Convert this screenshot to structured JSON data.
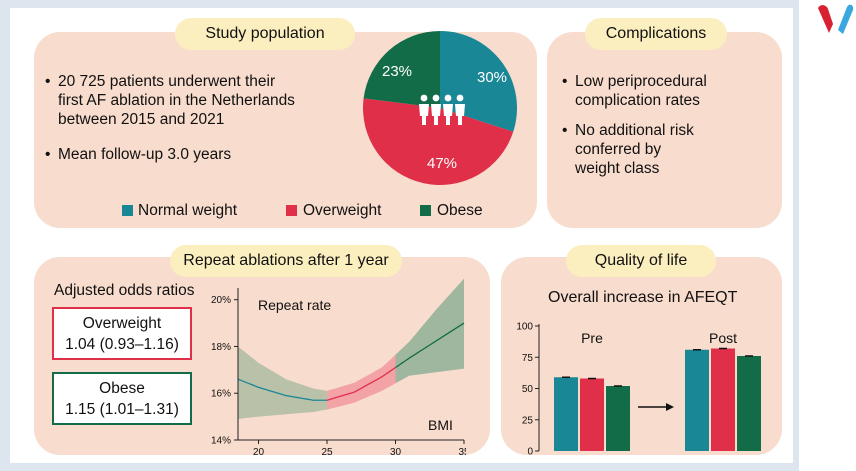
{
  "colors": {
    "normal": "#1a8797",
    "overweight": "#df2f49",
    "obese": "#136c48",
    "panel": "#f8dccd",
    "pill": "#fcefbf"
  },
  "study": {
    "title": "Study population",
    "bullet1": [
      "20 725 patients underwent their",
      "first AF ablation in the Netherlands",
      "between 2015 and 2021"
    ],
    "bullet2": "Mean follow-up 3.0 years",
    "pie": [
      {
        "label": "30%",
        "value": 30,
        "key": "normal"
      },
      {
        "label": "47%",
        "value": 47,
        "key": "overweight"
      },
      {
        "label": "23%",
        "value": 23,
        "key": "obese"
      }
    ],
    "people_icon": "people-group-icon",
    "legend": [
      "Normal weight",
      "Overweight",
      "Obese"
    ]
  },
  "complications": {
    "title": "Complications",
    "bullet1": [
      "Low periprocedural",
      "complication rates"
    ],
    "bullet2": [
      "No additional risk",
      "conferred by",
      "weight class"
    ]
  },
  "repeat": {
    "title": "Repeat ablations after 1 year",
    "odds_title": "Adjusted odds ratios",
    "overweight_label": "Overweight",
    "overweight_value": "1.04 (0.93–1.16)",
    "obese_label": "Obese",
    "obese_value": "1.15 (1.01–1.31)"
  },
  "qol": {
    "title": "Quality of life",
    "subtitle": "Overall increase in AFEQT"
  },
  "chart_data": [
    {
      "type": "line",
      "title": "Repeat rate",
      "xlabel": "BMI",
      "ylabel": "",
      "x_ticks": [
        "20",
        "25",
        "30",
        "35"
      ],
      "y_ticks": [
        "14%",
        "16%",
        "18%",
        "20%"
      ],
      "xlim": [
        18.5,
        35
      ],
      "ylim": [
        14,
        20.5
      ],
      "series": [
        {
          "name": "Repeat rate",
          "x": [
            18.5,
            20,
            22,
            24,
            25,
            27,
            29,
            31,
            33,
            35
          ],
          "y": [
            16.6,
            16.25,
            15.9,
            15.7,
            15.7,
            16.05,
            16.7,
            17.5,
            18.25,
            19.0
          ]
        }
      ],
      "ci_upper": [
        18.0,
        17.3,
        16.6,
        16.2,
        16.1,
        16.45,
        17.1,
        18.2,
        19.6,
        20.9
      ],
      "ci_lower": [
        14.9,
        15.0,
        15.1,
        15.2,
        15.3,
        15.6,
        16.1,
        16.75,
        16.9,
        17.05
      ],
      "segments": [
        {
          "name": "Normal weight",
          "from": 18.5,
          "to": 25,
          "key": "normal"
        },
        {
          "name": "Overweight",
          "from": 25,
          "to": 30,
          "key": "overweight"
        },
        {
          "name": "Obese",
          "from": 30,
          "to": 35,
          "key": "obese"
        }
      ]
    },
    {
      "type": "bar",
      "title": "Overall increase in AFEQT",
      "categories": [
        "Pre",
        "Post"
      ],
      "series": [
        {
          "name": "Normal weight",
          "values": [
            59,
            81
          ],
          "key": "normal"
        },
        {
          "name": "Overweight",
          "values": [
            58,
            82
          ],
          "key": "overweight"
        },
        {
          "name": "Obese",
          "values": [
            52,
            76
          ],
          "key": "obese"
        }
      ],
      "y_ticks": [
        "0",
        "25",
        "50",
        "75",
        "100"
      ],
      "ylim": [
        0,
        100
      ]
    }
  ]
}
